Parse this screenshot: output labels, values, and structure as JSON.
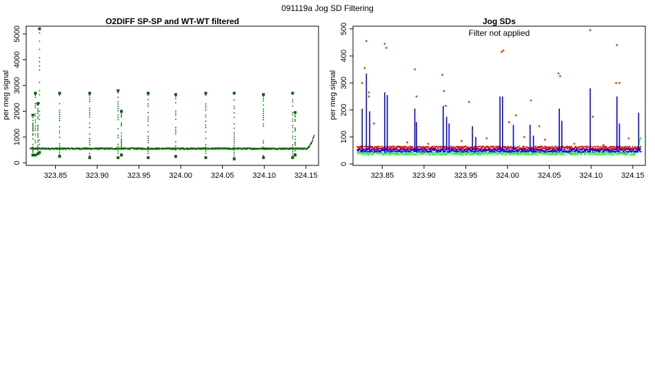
{
  "title": "091119a   Jog SD Filtering",
  "colors": {
    "dark_green": "#006400",
    "blue": "#0000ee",
    "red": "#e60000",
    "bright_green": "#22ee22",
    "orange": "#d25000"
  },
  "chart_data": [
    {
      "type": "scatter",
      "title": "O2DIFF SP-SP and WT-WT filtered",
      "xlabel": "",
      "ylabel": "per meg signal",
      "xlim": [
        323.815,
        324.165
      ],
      "ylim": [
        -100,
        5300
      ],
      "xticks": [
        323.85,
        323.9,
        323.95,
        324.0,
        324.05,
        324.1,
        324.15
      ],
      "xtick_labels": [
        "323.85",
        "323.90",
        "323.95",
        "324.00",
        "324.05",
        "324.10",
        "324.15"
      ],
      "yticks": [
        0,
        1000,
        2000,
        3000,
        4000,
        5000
      ],
      "ytick_labels": [
        "0",
        "1000",
        "2000",
        "3000",
        "4000",
        "5000"
      ],
      "series": [
        {
          "color": "#006400",
          "baseline": 550,
          "spikes": [
            {
              "x": 323.823,
              "low": 300,
              "high": 1850
            },
            {
              "x": 323.826,
              "low": 300,
              "high": 2700
            },
            {
              "x": 323.829,
              "low": 350,
              "high": 2300
            },
            {
              "x": 323.831,
              "low": 400,
              "high": 5200
            },
            {
              "x": 323.855,
              "low": 250,
              "high": 2700
            },
            {
              "x": 323.891,
              "low": 200,
              "high": 2700
            },
            {
              "x": 323.925,
              "low": 200,
              "high": 2800
            },
            {
              "x": 323.929,
              "low": 300,
              "high": 2000
            },
            {
              "x": 323.961,
              "low": 200,
              "high": 2700
            },
            {
              "x": 323.994,
              "low": 250,
              "high": 2650
            },
            {
              "x": 324.03,
              "low": 200,
              "high": 2700
            },
            {
              "x": 324.064,
              "low": 150,
              "high": 2700
            },
            {
              "x": 324.099,
              "low": 200,
              "high": 2650
            },
            {
              "x": 324.134,
              "low": 200,
              "high": 2700
            },
            {
              "x": 324.137,
              "low": 300,
              "high": 1950
            }
          ],
          "end_rise": {
            "x_start": 324.15,
            "x_end": 324.16,
            "value_end": 1100
          }
        }
      ]
    },
    {
      "type": "scatter",
      "title": "Jog SDs",
      "annotation": "Filter not applied",
      "xlabel": "",
      "ylabel": "per meg signal",
      "xlim": [
        323.815,
        324.165
      ],
      "ylim": [
        -5,
        510
      ],
      "xticks": [
        323.85,
        323.9,
        323.95,
        324.0,
        324.05,
        324.1,
        324.15
      ],
      "xtick_labels": [
        "323.85",
        "323.90",
        "323.95",
        "324.00",
        "324.05",
        "324.10",
        "324.15"
      ],
      "yticks": [
        0,
        100,
        200,
        300,
        400,
        500
      ],
      "ytick_labels": [
        "0",
        "100",
        "200",
        "300",
        "400",
        "500"
      ],
      "series": [
        {
          "color": "#22ee22",
          "baseline": 40,
          "end_rise": {
            "x_start": 324.152,
            "x_end": 324.16,
            "value_end": 110
          }
        },
        {
          "color": "#e60000",
          "baseline": 60
        },
        {
          "color": "#0000ee",
          "baseline": 50,
          "spikes": [
            {
              "x": 323.826,
              "high": 205
            },
            {
              "x": 323.831,
              "high": 335
            },
            {
              "x": 323.835,
              "high": 195
            },
            {
              "x": 323.853,
              "high": 265
            },
            {
              "x": 323.856,
              "high": 255
            },
            {
              "x": 323.889,
              "high": 205
            },
            {
              "x": 323.891,
              "high": 155
            },
            {
              "x": 323.923,
              "high": 215
            },
            {
              "x": 323.927,
              "high": 175
            },
            {
              "x": 323.93,
              "high": 150
            },
            {
              "x": 323.958,
              "high": 140
            },
            {
              "x": 323.962,
              "high": 100
            },
            {
              "x": 323.991,
              "high": 250
            },
            {
              "x": 323.994,
              "high": 250
            },
            {
              "x": 324.007,
              "high": 145
            },
            {
              "x": 324.027,
              "high": 145
            },
            {
              "x": 324.031,
              "high": 105
            },
            {
              "x": 324.062,
              "high": 205
            },
            {
              "x": 324.065,
              "high": 160
            },
            {
              "x": 324.099,
              "high": 280
            },
            {
              "x": 324.131,
              "high": 250
            },
            {
              "x": 324.134,
              "high": 150
            },
            {
              "x": 324.157,
              "high": 190
            }
          ]
        },
        {
          "color": "#d25000",
          "points": [
            [
              323.826,
              300
            ],
            [
              323.829,
              355
            ],
            [
              323.831,
              455
            ],
            [
              323.834,
              265
            ],
            [
              323.834,
              250
            ],
            [
              323.84,
              150
            ],
            [
              323.853,
              445
            ],
            [
              323.855,
              430
            ],
            [
              323.889,
              350
            ],
            [
              323.891,
              250
            ],
            [
              323.922,
              330
            ],
            [
              323.924,
              270
            ],
            [
              323.926,
              215
            ],
            [
              323.954,
              230
            ],
            [
              323.958,
              120
            ],
            [
              323.993,
              415
            ],
            [
              323.995,
              420
            ],
            [
              324.002,
              155
            ],
            [
              324.01,
              180
            ],
            [
              324.028,
              235
            ],
            [
              324.038,
              140
            ],
            [
              324.061,
              335
            ],
            [
              324.063,
              325
            ],
            [
              324.099,
              495
            ],
            [
              324.102,
              175
            ],
            [
              324.13,
              300
            ],
            [
              324.131,
              440
            ],
            [
              324.134,
              300
            ],
            [
              323.88,
              80
            ],
            [
              323.905,
              75
            ],
            [
              323.945,
              85
            ],
            [
              323.975,
              95
            ],
            [
              324.02,
              100
            ],
            [
              324.045,
              90
            ],
            [
              324.08,
              75
            ],
            [
              324.115,
              70
            ],
            [
              324.145,
              95
            ]
          ]
        }
      ]
    }
  ]
}
